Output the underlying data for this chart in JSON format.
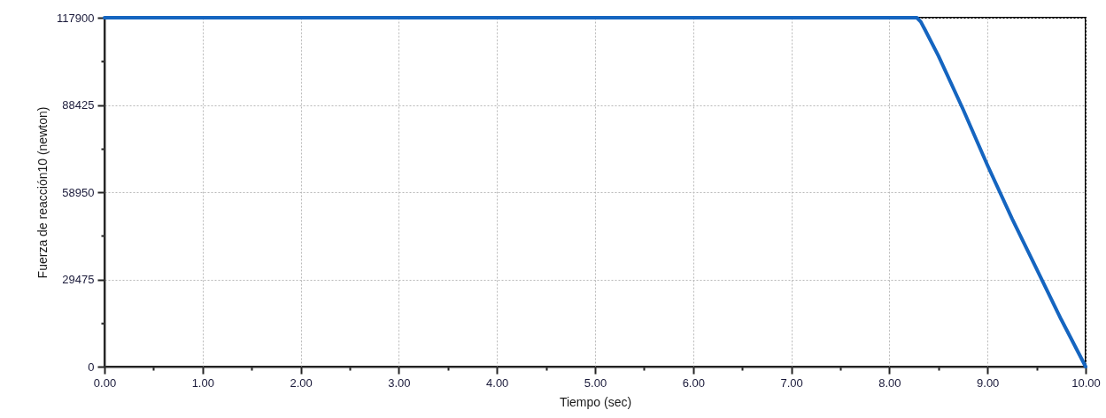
{
  "chart_data": {
    "type": "line",
    "xlabel": "Tiempo (sec)",
    "ylabel": "Fuerza de reacción10 (newton)",
    "series": [
      {
        "color": "#1565c0",
        "x": [
          0,
          8.28,
          8.32,
          8.36,
          8.5,
          8.75,
          9.0,
          9.25,
          9.5,
          9.75,
          10.0
        ],
        "values": [
          117900,
          117900,
          116500,
          114000,
          105000,
          87000,
          68000,
          50000,
          33000,
          16000,
          0
        ]
      }
    ],
    "xlim": [
      0,
      10
    ],
    "ylim": [
      0,
      117900
    ],
    "xticks": [
      {
        "value": 0,
        "label": "0.00"
      },
      {
        "value": 0.5,
        "label": null
      },
      {
        "value": 1,
        "label": "1.00"
      },
      {
        "value": 1.5,
        "label": null
      },
      {
        "value": 2,
        "label": "2.00"
      },
      {
        "value": 2.5,
        "label": null
      },
      {
        "value": 3,
        "label": "3.00"
      },
      {
        "value": 3.5,
        "label": null
      },
      {
        "value": 4,
        "label": "4.00"
      },
      {
        "value": 4.5,
        "label": null
      },
      {
        "value": 5,
        "label": "5.00"
      },
      {
        "value": 5.5,
        "label": null
      },
      {
        "value": 6,
        "label": "6.00"
      },
      {
        "value": 6.5,
        "label": null
      },
      {
        "value": 7,
        "label": "7.00"
      },
      {
        "value": 7.5,
        "label": null
      },
      {
        "value": 8,
        "label": "8.00"
      },
      {
        "value": 8.5,
        "label": null
      },
      {
        "value": 9,
        "label": "9.00"
      },
      {
        "value": 9.5,
        "label": null
      },
      {
        "value": 10,
        "label": "10.00"
      }
    ],
    "yticks": [
      0,
      {
        "value": 14737.5,
        "label": null
      },
      29475,
      {
        "value": 44212.5,
        "label": null
      },
      58950,
      {
        "value": 73687.5,
        "label": null
      },
      88425,
      {
        "value": 103162.5,
        "label": null
      },
      117900
    ],
    "grid": true,
    "line_style": "solid",
    "marker": "none"
  }
}
